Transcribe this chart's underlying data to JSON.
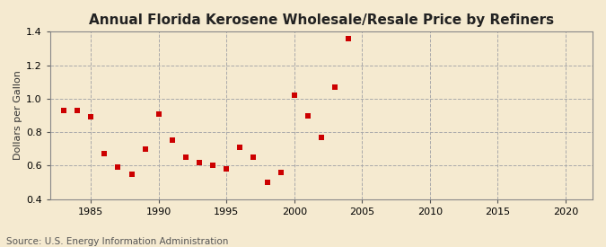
{
  "title": "Annual Florida Kerosene Wholesale/Resale Price by Refiners",
  "ylabel": "Dollars per Gallon",
  "source": "Source: U.S. Energy Information Administration",
  "background_color": "#f5ead0",
  "data": [
    [
      1983,
      0.93
    ],
    [
      1984,
      0.93
    ],
    [
      1985,
      0.89
    ],
    [
      1986,
      0.67
    ],
    [
      1987,
      0.59
    ],
    [
      1988,
      0.55
    ],
    [
      1989,
      0.7
    ],
    [
      1990,
      0.91
    ],
    [
      1991,
      0.75
    ],
    [
      1992,
      0.65
    ],
    [
      1993,
      0.62
    ],
    [
      1994,
      0.6
    ],
    [
      1995,
      0.58
    ],
    [
      1996,
      0.71
    ],
    [
      1997,
      0.65
    ],
    [
      1998,
      0.5
    ],
    [
      1999,
      0.56
    ],
    [
      2000,
      1.02
    ],
    [
      2001,
      0.9
    ],
    [
      2002,
      0.77
    ],
    [
      2003,
      1.07
    ],
    [
      2004,
      1.36
    ]
  ],
  "xlim": [
    1982,
    2022
  ],
  "ylim": [
    0.4,
    1.4
  ],
  "xticks": [
    1985,
    1990,
    1995,
    2000,
    2005,
    2010,
    2015,
    2020
  ],
  "yticks": [
    0.4,
    0.6,
    0.8,
    1.0,
    1.2,
    1.4
  ],
  "marker_color": "#cc0000",
  "marker": "s",
  "marker_size": 4,
  "grid_color": "#aaaaaa",
  "grid_linestyle": "--",
  "title_fontsize": 11,
  "label_fontsize": 8,
  "tick_fontsize": 8,
  "source_fontsize": 7.5
}
